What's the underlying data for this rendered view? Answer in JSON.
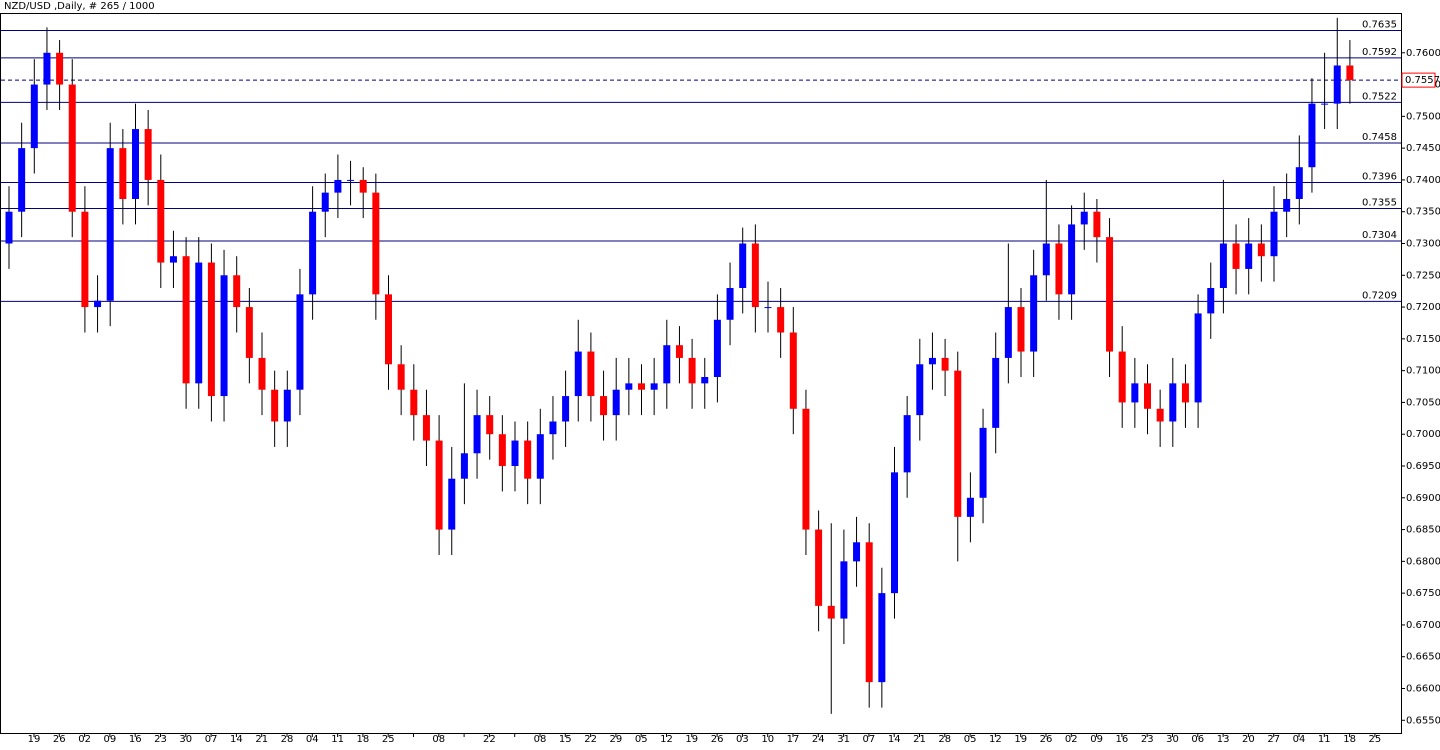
{
  "chart_data": {
    "type": "candlestick",
    "title": "NZD/USD ,Daily, # 265 / 1000",
    "up_color": "#0000ff",
    "down_color": "#ff0000",
    "wick_color": "#000000",
    "level_color": "#000080",
    "x_labels": [
      "19",
      "26",
      "02",
      "09",
      "16",
      "23",
      "30",
      "07",
      "14",
      "21",
      "28",
      "04",
      "11",
      "18",
      "25",
      null,
      "08",
      null,
      "22",
      null,
      "08",
      "15",
      "22",
      "29",
      "05",
      "12",
      "19",
      "26",
      "03",
      "10",
      "17",
      "24",
      "31",
      "07",
      "14",
      "21",
      "28",
      "05",
      "12",
      "19",
      "26",
      "02",
      "09",
      "16",
      "23",
      "30",
      "06",
      "13",
      "20",
      "27",
      "04",
      "11",
      "18",
      "25"
    ],
    "open": [
      0.73,
      0.735,
      0.745,
      0.755,
      0.76,
      0.755,
      0.735,
      0.72,
      0.721,
      0.745,
      0.737,
      0.748,
      0.74,
      0.727,
      0.728,
      0.708,
      0.727,
      0.706,
      0.725,
      0.72,
      0.712,
      0.707,
      0.702,
      0.707,
      0.722,
      0.735,
      0.738,
      0.74,
      0.74,
      0.738,
      0.722,
      0.711,
      0.707,
      0.703,
      0.699,
      0.685,
      0.693,
      0.697,
      0.703,
      0.7,
      0.695,
      0.699,
      0.693,
      0.7,
      0.702,
      0.706,
      0.713,
      0.706,
      0.703,
      0.707,
      0.708,
      0.707,
      0.708,
      0.714,
      0.712,
      0.708,
      0.709,
      0.718,
      0.723,
      0.73,
      0.72,
      0.72,
      0.716,
      0.704,
      0.685,
      0.673,
      0.671,
      0.68,
      0.683,
      0.661,
      0.675,
      0.694,
      0.703,
      0.711,
      0.712,
      0.71,
      0.687,
      0.69,
      0.701,
      0.712,
      0.72,
      0.713,
      0.725,
      0.73,
      0.722,
      0.733,
      0.735,
      0.731,
      0.713,
      0.705,
      0.708,
      0.704,
      0.702,
      0.708,
      0.705,
      0.719,
      0.723,
      0.73,
      0.726,
      0.73,
      0.728,
      0.735,
      0.737,
      0.742,
      0.752,
      0.752,
      0.758
    ],
    "high": [
      0.739,
      0.749,
      0.759,
      0.764,
      0.762,
      0.759,
      0.739,
      0.725,
      0.749,
      0.748,
      0.752,
      0.751,
      0.744,
      0.732,
      0.731,
      0.731,
      0.73,
      0.729,
      0.728,
      0.723,
      0.716,
      0.71,
      0.71,
      0.726,
      0.739,
      0.741,
      0.744,
      0.743,
      0.742,
      0.741,
      0.725,
      0.714,
      0.711,
      0.707,
      0.703,
      0.698,
      0.708,
      0.707,
      0.706,
      0.703,
      0.702,
      0.702,
      0.704,
      0.706,
      0.71,
      0.718,
      0.716,
      0.71,
      0.712,
      0.712,
      0.711,
      0.712,
      0.718,
      0.717,
      0.715,
      0.712,
      0.722,
      0.727,
      0.7325,
      0.733,
      0.724,
      0.723,
      0.72,
      0.707,
      0.688,
      0.686,
      0.685,
      0.687,
      0.686,
      0.679,
      0.698,
      0.706,
      0.715,
      0.716,
      0.715,
      0.713,
      0.694,
      0.704,
      0.716,
      0.73,
      0.723,
      0.729,
      0.74,
      0.733,
      0.736,
      0.738,
      0.737,
      0.734,
      0.717,
      0.712,
      0.711,
      0.707,
      0.712,
      0.711,
      0.722,
      0.727,
      0.74,
      0.733,
      0.734,
      0.733,
      0.739,
      0.741,
      0.747,
      0.756,
      0.76,
      0.7655,
      0.762
    ],
    "low": [
      0.726,
      0.731,
      0.741,
      0.751,
      0.751,
      0.731,
      0.716,
      0.716,
      0.717,
      0.733,
      0.733,
      0.736,
      0.723,
      0.723,
      0.704,
      0.704,
      0.702,
      0.702,
      0.716,
      0.708,
      0.703,
      0.698,
      0.698,
      0.703,
      0.718,
      0.731,
      0.734,
      0.736,
      0.734,
      0.718,
      0.707,
      0.703,
      0.699,
      0.695,
      0.681,
      0.681,
      0.689,
      0.693,
      0.696,
      0.691,
      0.691,
      0.689,
      0.689,
      0.696,
      0.698,
      0.702,
      0.702,
      0.699,
      0.699,
      0.703,
      0.703,
      0.703,
      0.704,
      0.708,
      0.704,
      0.704,
      0.705,
      0.714,
      0.719,
      0.716,
      0.716,
      0.712,
      0.7,
      0.681,
      0.669,
      0.656,
      0.667,
      0.676,
      0.657,
      0.657,
      0.671,
      0.69,
      0.699,
      0.707,
      0.706,
      0.68,
      0.683,
      0.686,
      0.697,
      0.708,
      0.709,
      0.709,
      0.721,
      0.718,
      0.718,
      0.729,
      0.727,
      0.709,
      0.701,
      0.701,
      0.7,
      0.698,
      0.698,
      0.701,
      0.701,
      0.715,
      0.719,
      0.722,
      0.722,
      0.724,
      0.724,
      0.731,
      0.733,
      0.738,
      0.748,
      0.748,
      0.752
    ],
    "close": [
      0.735,
      0.745,
      0.755,
      0.76,
      0.755,
      0.735,
      0.72,
      0.721,
      0.745,
      0.737,
      0.748,
      0.74,
      0.727,
      0.728,
      0.708,
      0.727,
      0.706,
      0.725,
      0.72,
      0.712,
      0.707,
      0.702,
      0.707,
      0.722,
      0.735,
      0.738,
      0.74,
      0.74,
      0.738,
      0.722,
      0.711,
      0.707,
      0.703,
      0.699,
      0.685,
      0.693,
      0.697,
      0.703,
      0.7,
      0.695,
      0.699,
      0.693,
      0.7,
      0.702,
      0.706,
      0.713,
      0.706,
      0.703,
      0.707,
      0.708,
      0.707,
      0.708,
      0.714,
      0.712,
      0.708,
      0.709,
      0.718,
      0.723,
      0.73,
      0.72,
      0.72,
      0.716,
      0.704,
      0.685,
      0.673,
      0.671,
      0.68,
      0.683,
      0.661,
      0.675,
      0.694,
      0.703,
      0.711,
      0.712,
      0.71,
      0.687,
      0.69,
      0.701,
      0.712,
      0.72,
      0.713,
      0.725,
      0.73,
      0.722,
      0.733,
      0.735,
      0.731,
      0.713,
      0.705,
      0.708,
      0.704,
      0.702,
      0.708,
      0.705,
      0.719,
      0.723,
      0.73,
      0.726,
      0.73,
      0.728,
      0.735,
      0.737,
      0.742,
      0.752,
      0.752,
      0.758,
      0.7557
    ],
    "levels": [
      0.7635,
      0.7592,
      0.7522,
      0.7458,
      0.7396,
      0.7355,
      0.7304,
      0.7209
    ],
    "current_price": 0.7557,
    "current_price_color": "#ff0000",
    "ylim": [
      0.653,
      0.7661
    ],
    "yticks": [
      {
        "value": 0.655,
        "label": "0.6550"
      },
      {
        "value": 0.66,
        "label": "0.6600"
      },
      {
        "value": 0.665,
        "label": "0.6650"
      },
      {
        "value": 0.67,
        "label": "0.6700"
      },
      {
        "value": 0.675,
        "label": "0.6750"
      },
      {
        "value": 0.68,
        "label": "0.6800"
      },
      {
        "value": 0.685,
        "label": "0.6850"
      },
      {
        "value": 0.69,
        "label": "0.6900"
      },
      {
        "value": 0.695,
        "label": "0.6950"
      },
      {
        "value": 0.7,
        "label": "0.7000"
      },
      {
        "value": 0.705,
        "label": "0.7050"
      },
      {
        "value": 0.71,
        "label": "0.7100"
      },
      {
        "value": 0.715,
        "label": "0.7150"
      },
      {
        "value": 0.72,
        "label": "0.7200"
      },
      {
        "value": 0.725,
        "label": "0.7250"
      },
      {
        "value": 0.73,
        "label": "0.7300"
      },
      {
        "value": 0.735,
        "label": "0.7350"
      },
      {
        "value": 0.74,
        "label": "0.7400"
      },
      {
        "value": 0.745,
        "label": "0.7450"
      },
      {
        "value": 0.75,
        "label": "0.7500"
      },
      {
        "value": 0.755,
        "label": "0.7550"
      },
      {
        "value": 0.76,
        "label": "0.7600"
      }
    ]
  }
}
